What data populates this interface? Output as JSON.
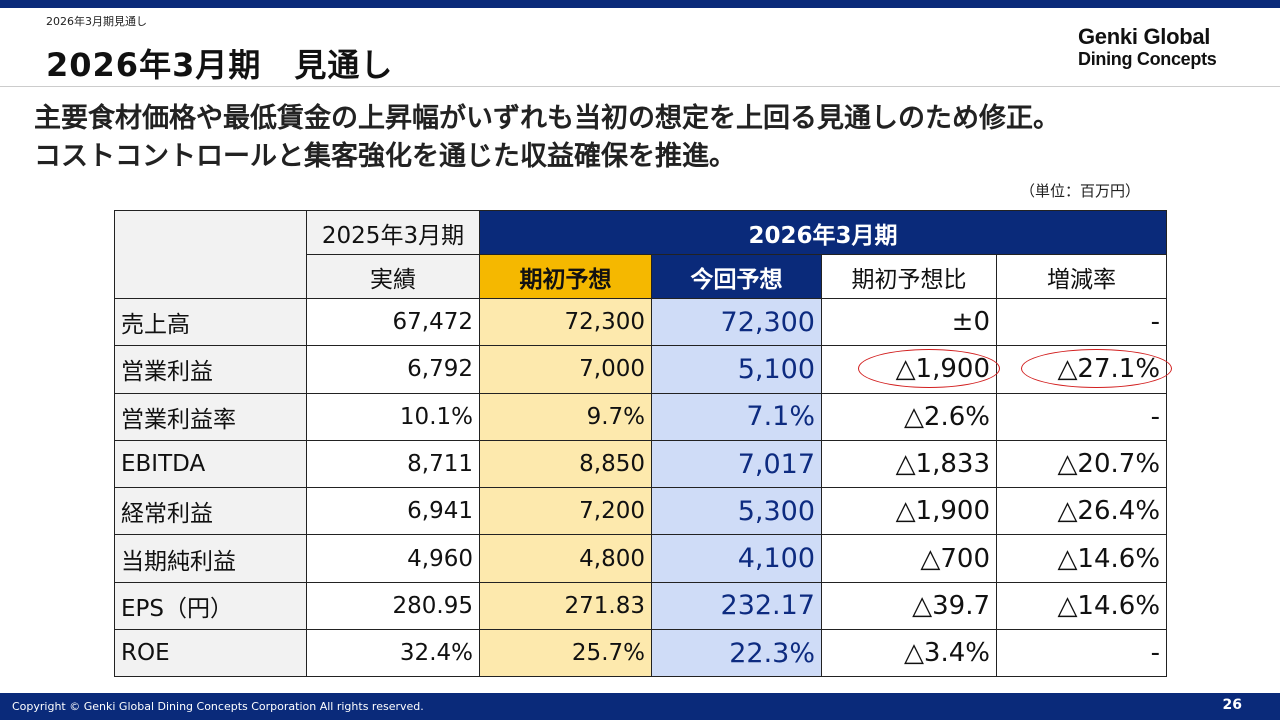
{
  "header": {
    "breadcrumb": "2026年3月期見通し",
    "title": "2026年3月期　見通し",
    "logo_line1": "Genki Global",
    "logo_line2": "Dining Concepts"
  },
  "headline": {
    "line1": "主要食材価格や最低賃金の上昇幅がいずれも当初の想定を上回る見通しのため修正。",
    "line2": "コストコントロールと集客強化を通じた収益確保を推進。"
  },
  "unit_note": "（単位：百万円）",
  "table": {
    "header_fy2025": "2025年3月期",
    "header_fy2026": "2026年3月期",
    "columns": {
      "actual": "実績",
      "initial_forecast": "期初予想",
      "current_forecast": "今回予想",
      "vs_initial": "期初予想比",
      "change_rate": "増減率"
    },
    "rows": [
      {
        "label": "売上高",
        "actual": "67,472",
        "initial": "72,300",
        "current": "72,300",
        "diff": "±0",
        "rate": "-"
      },
      {
        "label": "営業利益",
        "actual": "6,792",
        "initial": "7,000",
        "current": "5,100",
        "diff": "△1,900",
        "rate": "△27.1%"
      },
      {
        "label": "営業利益率",
        "actual": "10.1%",
        "initial": "9.7%",
        "current": "7.1%",
        "diff": "△2.6%",
        "rate": "-"
      },
      {
        "label": "EBITDA",
        "actual": "8,711",
        "initial": "8,850",
        "current": "7,017",
        "diff": "△1,833",
        "rate": "△20.7%"
      },
      {
        "label": "経常利益",
        "actual": "6,941",
        "initial": "7,200",
        "current": "5,300",
        "diff": "△1,900",
        "rate": "△26.4%"
      },
      {
        "label": "当期純利益",
        "actual": "4,960",
        "initial": "4,800",
        "current": "4,100",
        "diff": "△700",
        "rate": "△14.6%"
      },
      {
        "label": "EPS（円）",
        "actual": "280.95",
        "initial": "271.83",
        "current": "232.17",
        "diff": "△39.7",
        "rate": "△14.6%"
      },
      {
        "label": "ROE",
        "actual": "32.4%",
        "initial": "25.7%",
        "current": "22.3%",
        "diff": "△3.4%",
        "rate": "-"
      }
    ]
  },
  "footer": {
    "copyright": "Copyright © Genki Global Dining Concepts Corporation All rights reserved.",
    "page_number": "26"
  },
  "colors": {
    "brand_navy": "#0a2a7a",
    "initial_forecast_header": "#f5b800",
    "initial_forecast_cell": "#fde9ad",
    "current_forecast_cell": "#cfdcf7",
    "current_forecast_text": "#0d2b80",
    "highlight_oval": "#d21f1f"
  }
}
